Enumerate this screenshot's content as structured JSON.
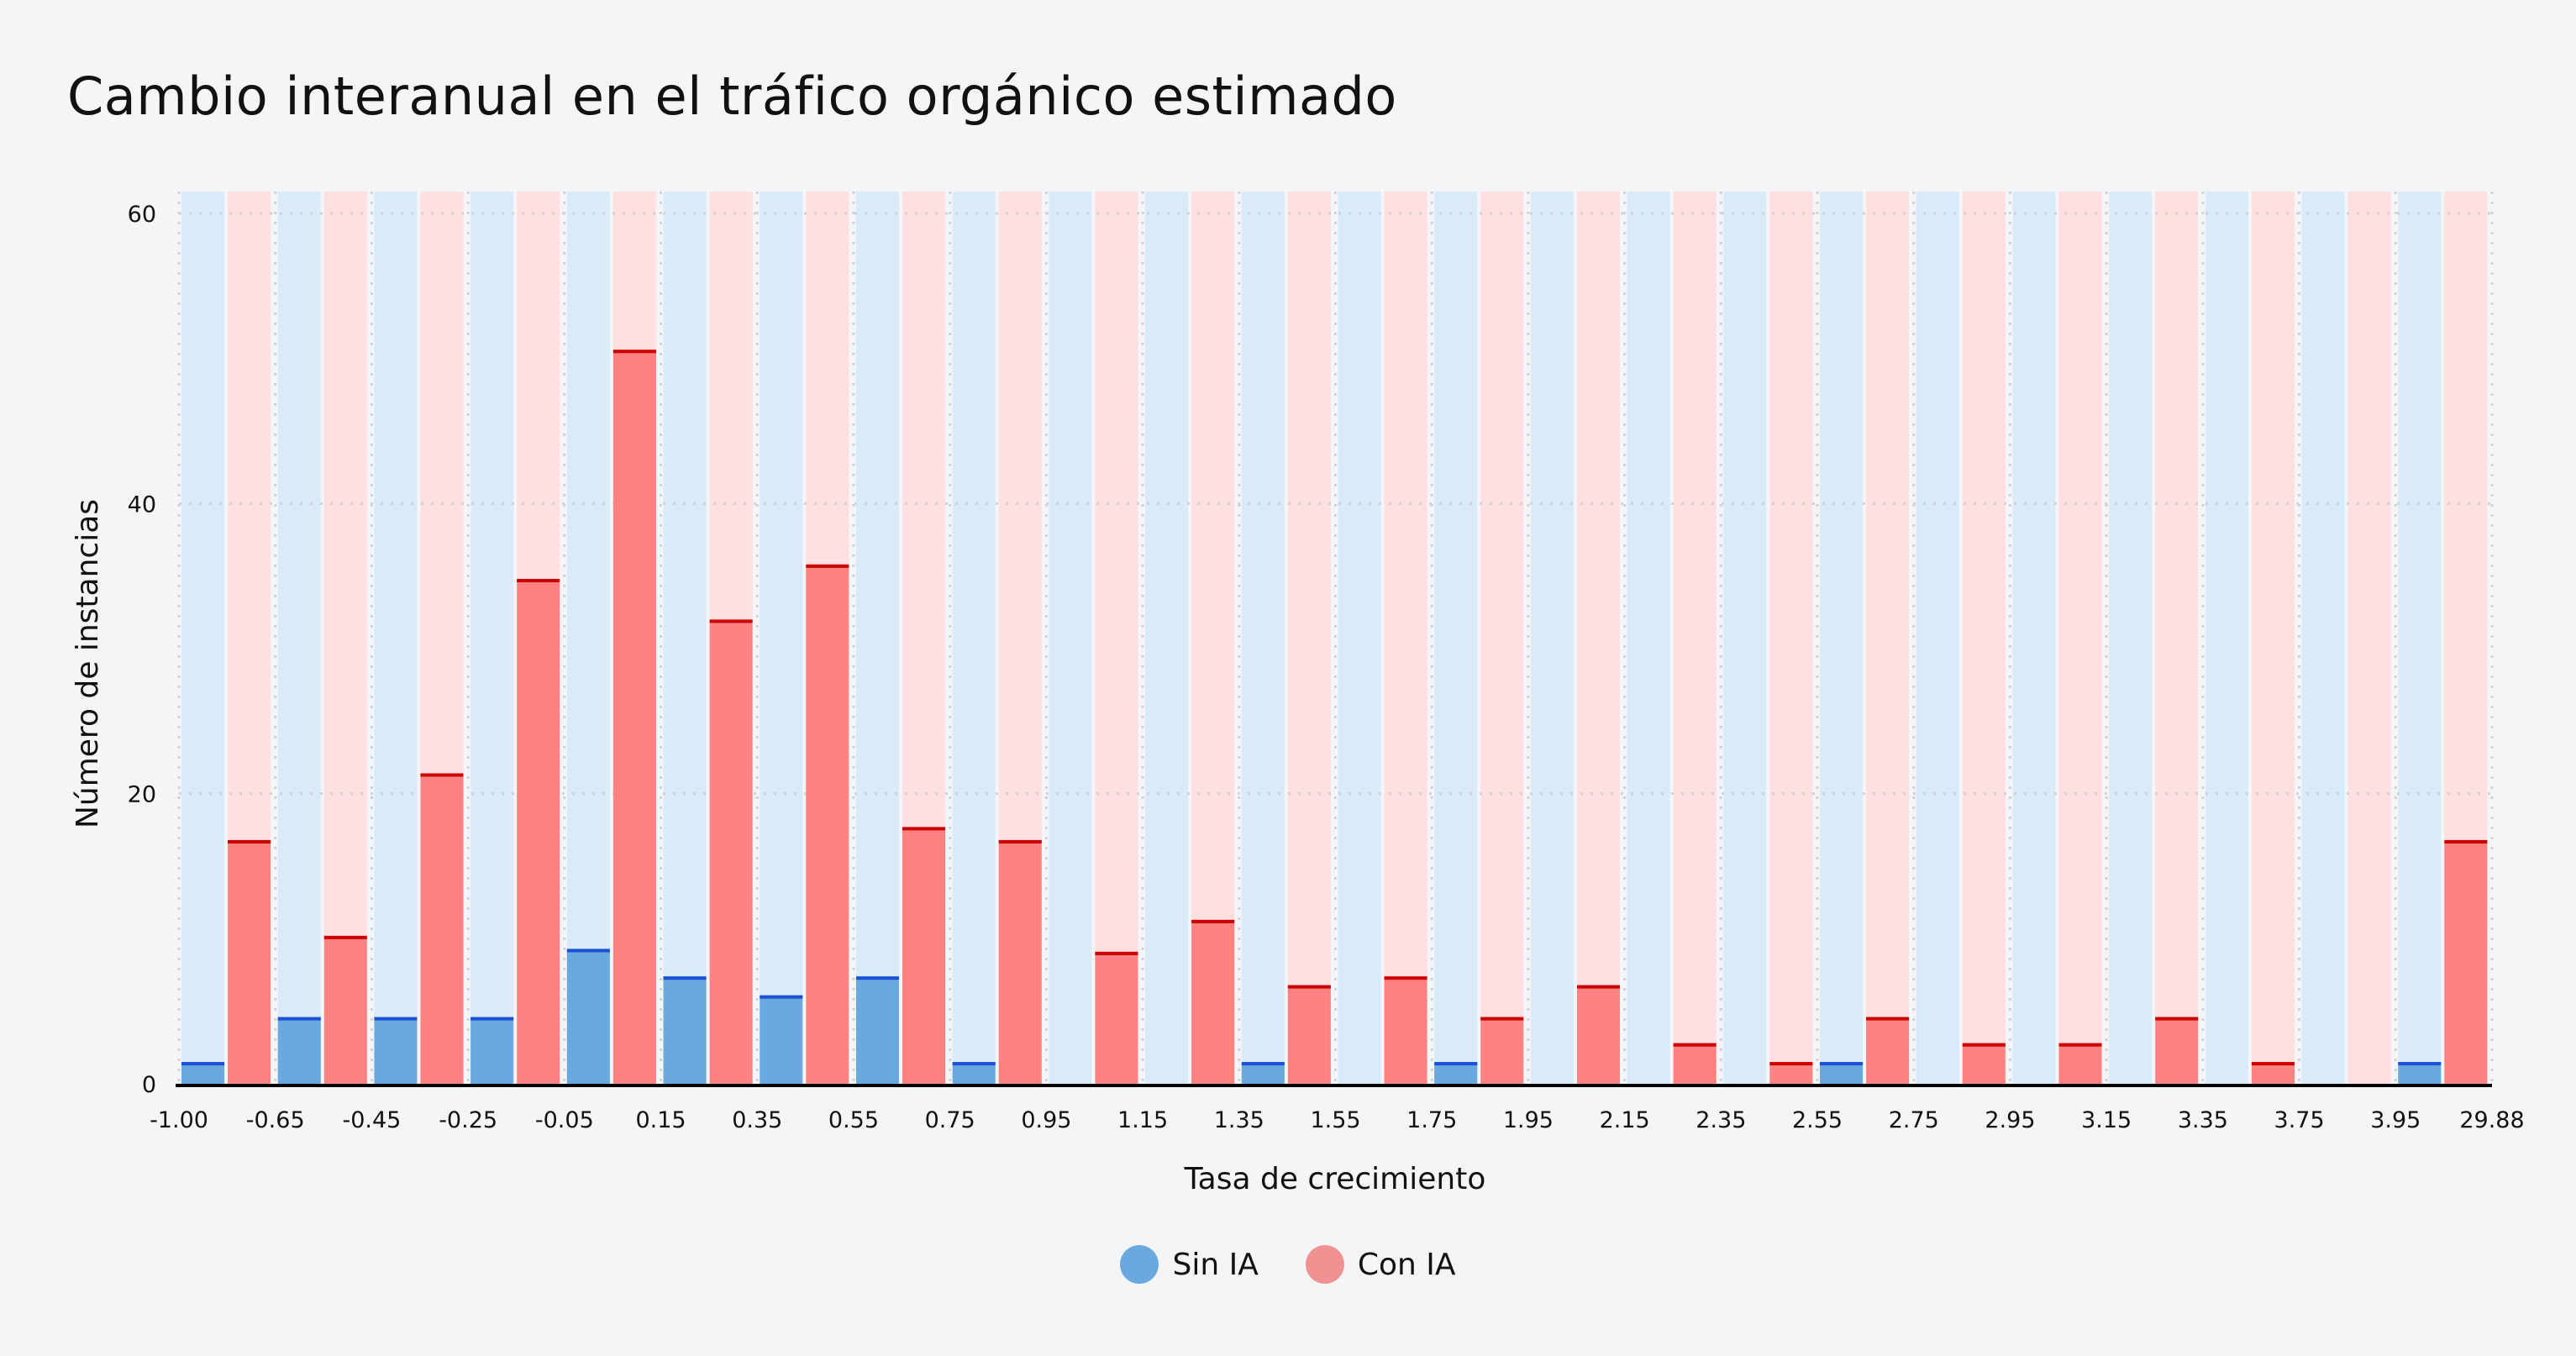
{
  "chart_data": {
    "type": "bar",
    "title": "Cambio interanual en el tráfico orgánico estimado",
    "xlabel": "Tasa de crecimiento",
    "ylabel": "Número de instancias",
    "bin_edges": [
      "-1.00",
      "-0.65",
      "-0.45",
      "-0.25",
      "-0.05",
      "0.15",
      "0.35",
      "0.55",
      "0.75",
      "0.95",
      "1.15",
      "1.35",
      "1.55",
      "1.75",
      "1.95",
      "2.15",
      "2.35",
      "2.55",
      "2.75",
      "2.95",
      "3.15",
      "3.35",
      "3.75",
      "3.95",
      "29.88"
    ],
    "yticks": [
      0,
      20,
      40,
      60
    ],
    "ylim": [
      0,
      61.5
    ],
    "grid": true,
    "legend_position": "bottom",
    "series": [
      {
        "name": "Sin IA",
        "color": "#6aa9df",
        "edge_color": "#1a4fd6",
        "background": "#d9eaf9",
        "values": [
          1.5,
          4.6,
          4.6,
          4.6,
          9.3,
          7.4,
          6.1,
          7.4,
          1.5,
          0,
          0,
          1.5,
          0,
          1.5,
          0,
          0,
          0,
          1.5,
          0,
          0,
          0,
          0,
          0,
          1.5
        ]
      },
      {
        "name": "Con IA",
        "color": "#ff8282",
        "edge_color": "#cc0000",
        "background": "#ffdfe0",
        "values": [
          16.8,
          10.2,
          21.4,
          34.8,
          50.6,
          32.0,
          35.8,
          17.7,
          16.8,
          9.1,
          11.3,
          6.8,
          7.4,
          4.6,
          6.8,
          2.8,
          1.5,
          4.6,
          2.8,
          2.8,
          4.6,
          1.5,
          0,
          16.8
        ]
      }
    ]
  },
  "legend": {
    "sin_ia": "Sin IA",
    "con_ia": "Con IA",
    "sin_ia_color": "#6aa9df",
    "con_ia_color": "#f09292"
  }
}
